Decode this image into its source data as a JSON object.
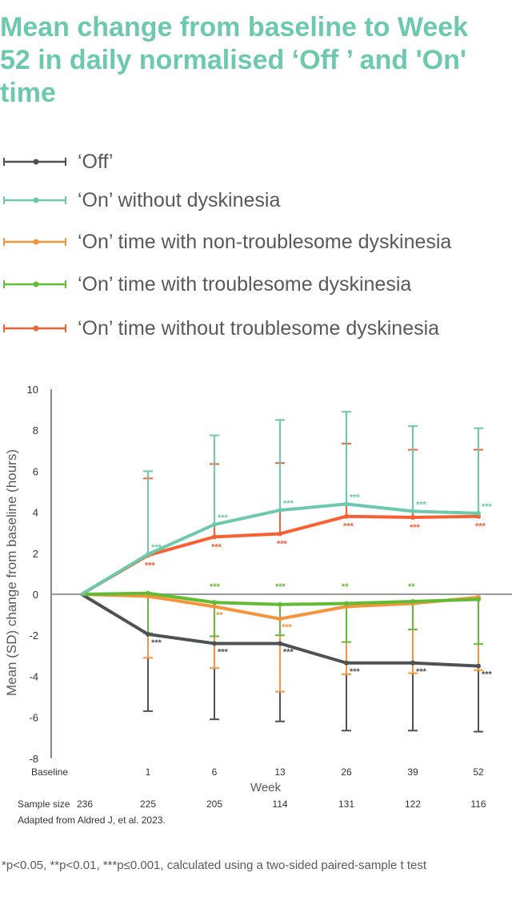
{
  "title": "Mean change from baseline to Week 52 in daily normalised ‘Off ’ and 'On' time",
  "legend": [
    {
      "label": "‘Off’",
      "color": "#4d5257"
    },
    {
      "label": "‘On’ without dyskinesia",
      "color": "#6cc9ae"
    },
    {
      "label": "‘On’ time with non-troublesome dyskinesia",
      "color": "#f7943a"
    },
    {
      "label": "‘On’ time with troublesome dyskinesia",
      "color": "#62bb35"
    },
    {
      "label": "‘On’ time without troublesome dyskinesia",
      "color": "#f85f32"
    }
  ],
  "chart_data": {
    "type": "line",
    "ylabel": "Mean (SD) change from baseline (hours)",
    "xlabel": "Week",
    "categories": [
      "Baseline",
      "1",
      "6",
      "13",
      "26",
      "39",
      "52"
    ],
    "ylim": [
      -8,
      10
    ],
    "yticks": [
      "10",
      "8",
      "6",
      "4",
      "2",
      "0",
      "-2",
      "-4",
      "-6",
      "-8"
    ],
    "grid": false,
    "sample_size_label": "Sample size",
    "sample_sizes": [
      "236",
      "225",
      "205",
      "114",
      "131",
      "122",
      "116"
    ],
    "series": [
      {
        "name": "‘Off’",
        "color": "#4d5257",
        "values": [
          0,
          -1.95,
          -2.4,
          -2.4,
          -3.35,
          -3.35,
          -3.5
        ],
        "error_end": [
          null,
          -5.7,
          -6.1,
          -6.2,
          -6.65,
          -6.65,
          -6.7
        ],
        "significance": [
          "",
          "***",
          "***",
          "***",
          "***",
          "***",
          "***"
        ]
      },
      {
        "name": "‘On’ without dyskinesia",
        "color": "#6cc9ae",
        "values": [
          0,
          1.95,
          3.4,
          4.1,
          4.4,
          4.05,
          3.95
        ],
        "error_end": [
          null,
          6.0,
          7.75,
          8.5,
          8.9,
          8.2,
          8.1
        ],
        "significance": [
          "",
          "***",
          "***",
          "***",
          "***",
          "***",
          "***"
        ]
      },
      {
        "name": "‘On’ time with non-troublesome dyskinesia",
        "color": "#f7943a",
        "values": [
          0,
          -0.1,
          -0.6,
          -1.2,
          -0.6,
          -0.45,
          -0.15
        ],
        "error_end": [
          null,
          -3.1,
          -3.6,
          -4.75,
          -3.9,
          -3.85,
          -3.7
        ],
        "significance": [
          "",
          "",
          "**",
          "***",
          "",
          "",
          ""
        ]
      },
      {
        "name": "‘On’ time with troublesome dyskinesia",
        "color": "#62bb35",
        "values": [
          0,
          0.05,
          -0.4,
          -0.5,
          -0.45,
          -0.35,
          -0.25
        ],
        "error_end": [
          null,
          -1.9,
          -2.05,
          -2.0,
          -2.33,
          -1.72,
          -2.43
        ],
        "significance": [
          "",
          "",
          "***",
          "***",
          "**",
          "**",
          ""
        ]
      },
      {
        "name": "‘On’ time without troublesome dyskinesia",
        "color": "#f85f32",
        "values": [
          0,
          1.9,
          2.8,
          2.95,
          3.8,
          3.75,
          3.8
        ],
        "error_end": [
          null,
          5.65,
          6.35,
          6.4,
          7.35,
          7.05,
          7.05
        ],
        "significance": [
          "",
          "***",
          "***",
          "***",
          "***",
          "***",
          "***"
        ]
      }
    ]
  },
  "source": "Adapted from Aldred J, et al. 2023.",
  "footnote": "*p<0.05, **p<0.01, ***p≤0.001, calculated using a two-sided paired-sample t test"
}
